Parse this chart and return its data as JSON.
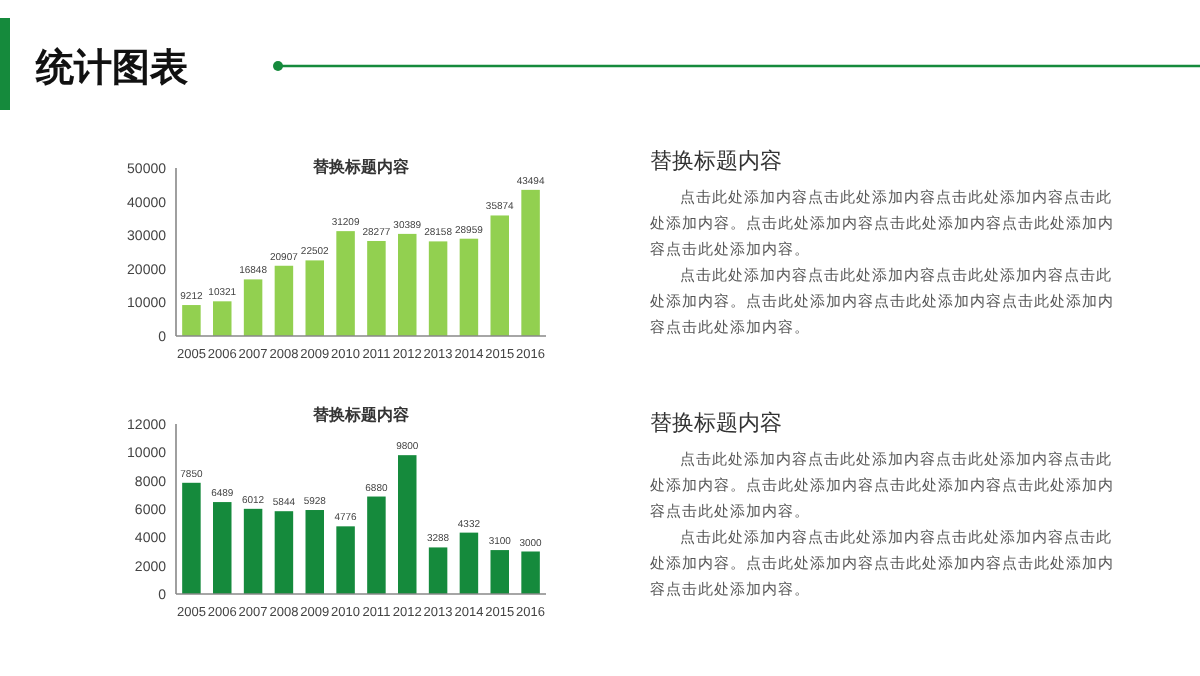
{
  "chart_data": [
    {
      "type": "other",
      "title": "统计图表"
    },
    {
      "type": "bar",
      "title": "替换标题内容",
      "categories": [
        "2005",
        "2006",
        "2007",
        "2008",
        "2009",
        "2010",
        "2011",
        "2012",
        "2013",
        "2014",
        "2015",
        "2016"
      ],
      "values": [
        9212,
        10321,
        16848,
        20907,
        22502,
        31209,
        28277,
        30389,
        28158,
        28959,
        35874,
        43494
      ],
      "color": "#92d050",
      "ylim": [
        0,
        50000
      ],
      "yticks": [
        0,
        10000,
        20000,
        30000,
        40000,
        50000
      ],
      "data_labels": true,
      "grid": false
    },
    {
      "type": "other",
      "title": "替换标题内容",
      "annotations": [
        "点击此处添加内容点击此处添加内容点击此处添加内容点击此处添加内容。点击此处添加内容点击此处添加内容点击此处添加内容点击此处添加内容。",
        "点击此处添加内容点击此处添加内容点击此处添加内容点击此处添加内容。点击此处添加内容点击此处添加内容点击此处添加内容点击此处添加内容。"
      ]
    },
    {
      "type": "bar",
      "title": "替换标题内容",
      "categories": [
        "2005",
        "2006",
        "2007",
        "2008",
        "2009",
        "2010",
        "2011",
        "2012",
        "2013",
        "2014",
        "2015",
        "2016"
      ],
      "values": [
        7850,
        6489,
        6012,
        5844,
        5928,
        4776,
        6880,
        9800,
        3288,
        4332,
        3100,
        3000
      ],
      "color": "#158a3c",
      "ylim": [
        0,
        12000
      ],
      "yticks": [
        0,
        2000,
        4000,
        6000,
        8000,
        10000,
        12000
      ],
      "data_labels": true,
      "grid": false
    },
    {
      "type": "other",
      "title": "替换标题内容",
      "annotations": [
        "点击此处添加内容点击此处添加内容点击此处添加内容点击此处添加内容。点击此处添加内容点击此处添加内容点击此处添加内容点击此处添加内容。",
        "点击此处添加内容点击此处添加内容点击此处添加内容点击此处添加内容。点击此处添加内容点击此处添加内容点击此处添加内容点击此处添加内容。"
      ]
    }
  ]
}
